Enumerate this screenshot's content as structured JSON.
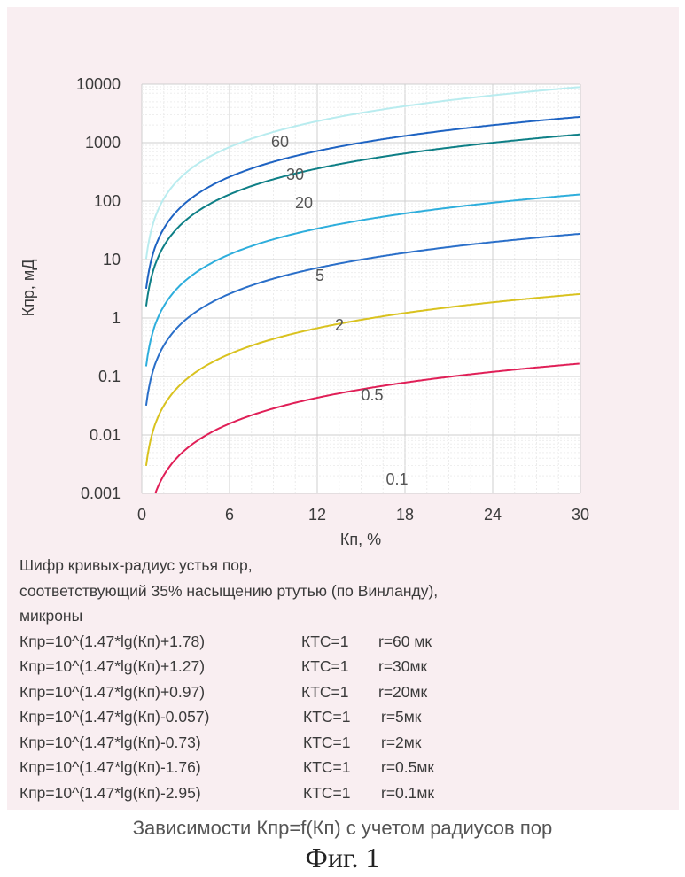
{
  "chart_data": {
    "type": "line",
    "y_scale": "log",
    "xlabel": "Кп, %",
    "ylabel": "Кпр, мД",
    "xlim": [
      0,
      30
    ],
    "ylim": [
      0.001,
      10000
    ],
    "x_ticks": [
      "0",
      "6",
      "12",
      "18",
      "24",
      "30"
    ],
    "y_ticks": [
      "0.001",
      "0.01",
      "0.1",
      "1",
      "10",
      "100",
      "1000",
      "10000"
    ],
    "grid": true,
    "formula": "y = 10^(1.47*lg(x) + b)",
    "series": [
      {
        "name": "60",
        "b": 1.78,
        "color": "#b9ecef"
      },
      {
        "name": "30",
        "b": 1.27,
        "color": "#1e63c2"
      },
      {
        "name": "20",
        "b": 0.97,
        "color": "#0e7f86"
      },
      {
        "name": "5",
        "b": -0.057,
        "color": "#2eaedc"
      },
      {
        "name": "2",
        "b": -0.73,
        "color": "#2a6fc9"
      },
      {
        "name": "0.5",
        "b": -1.76,
        "color": "#d9c21f"
      },
      {
        "name": "0.1",
        "b": -2.95,
        "color": "#e01f57"
      }
    ]
  },
  "legend": {
    "heading_lines": [
      "Шифр кривых-радиус устья пор,",
      "соответствующий 35% насыщению ртутью (по Винланду),",
      "микроны"
    ],
    "equations": [
      {
        "formula": "Кпр=10^(1.47*lg(Кп)+1.78)",
        "ktc": "КТС=1",
        "r": "r=60 мк"
      },
      {
        "formula": "Кпр=10^(1.47*lg(Кп)+1.27)",
        "ktc": "КТС=1",
        "r": "r=30мк"
      },
      {
        "formula": "Кпр=10^(1.47*lg(Кп)+0.97)",
        "ktc": "КТС=1",
        "r": "r=20мк"
      },
      {
        "formula": "Кпр=10^(1.47*lg(Кп)-0.057)",
        "ktc": "КТС=1",
        "r": "r=5мк"
      },
      {
        "formula": "Кпр=10^(1.47*lg(Кп)-0.73)",
        "ktc": "КТС=1",
        "r": "r=2мк"
      },
      {
        "formula": "Кпр=10^(1.47*lg(Кп)-1.76)",
        "ktc": "КТС=1",
        "r": "r=0.5мк"
      },
      {
        "formula": "Кпр=10^(1.47*lg(Кп)-2.95)",
        "ktc": "КТС=1",
        "r": "r=0.1мк"
      }
    ]
  },
  "caption": "Зависимости Кпр=f(Кп) с учетом радиусов пор",
  "figure_label": "Фиг. 1"
}
